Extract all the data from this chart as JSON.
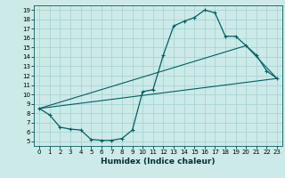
{
  "xlabel": "Humidex (Indice chaleur)",
  "bg_color": "#cceae8",
  "grid_color": "#aad4d2",
  "line_color": "#006060",
  "xlim": [
    -0.5,
    23.5
  ],
  "ylim": [
    4.5,
    19.5
  ],
  "xticks": [
    0,
    1,
    2,
    3,
    4,
    5,
    6,
    7,
    8,
    9,
    10,
    11,
    12,
    13,
    14,
    15,
    16,
    17,
    18,
    19,
    20,
    21,
    22,
    23
  ],
  "yticks": [
    5,
    6,
    7,
    8,
    9,
    10,
    11,
    12,
    13,
    14,
    15,
    16,
    17,
    18,
    19
  ],
  "series1_x": [
    0,
    1,
    2,
    3,
    4,
    5,
    6,
    7,
    8,
    9,
    10,
    11,
    12,
    13,
    14,
    15,
    16,
    17,
    18,
    19,
    20,
    21,
    22,
    23
  ],
  "series1_y": [
    8.5,
    7.8,
    6.5,
    6.3,
    6.2,
    5.2,
    5.1,
    5.1,
    5.3,
    6.2,
    10.3,
    10.5,
    14.2,
    17.3,
    17.8,
    18.2,
    19.0,
    18.7,
    16.2,
    16.2,
    15.2,
    14.2,
    12.5,
    11.7
  ],
  "series2_x": [
    0,
    23
  ],
  "series2_y": [
    8.5,
    11.7
  ],
  "series3_x": [
    0,
    20,
    23
  ],
  "series3_y": [
    8.5,
    15.2,
    11.7
  ],
  "xlabel_fontsize": 6.5,
  "tick_fontsize": 5.0
}
